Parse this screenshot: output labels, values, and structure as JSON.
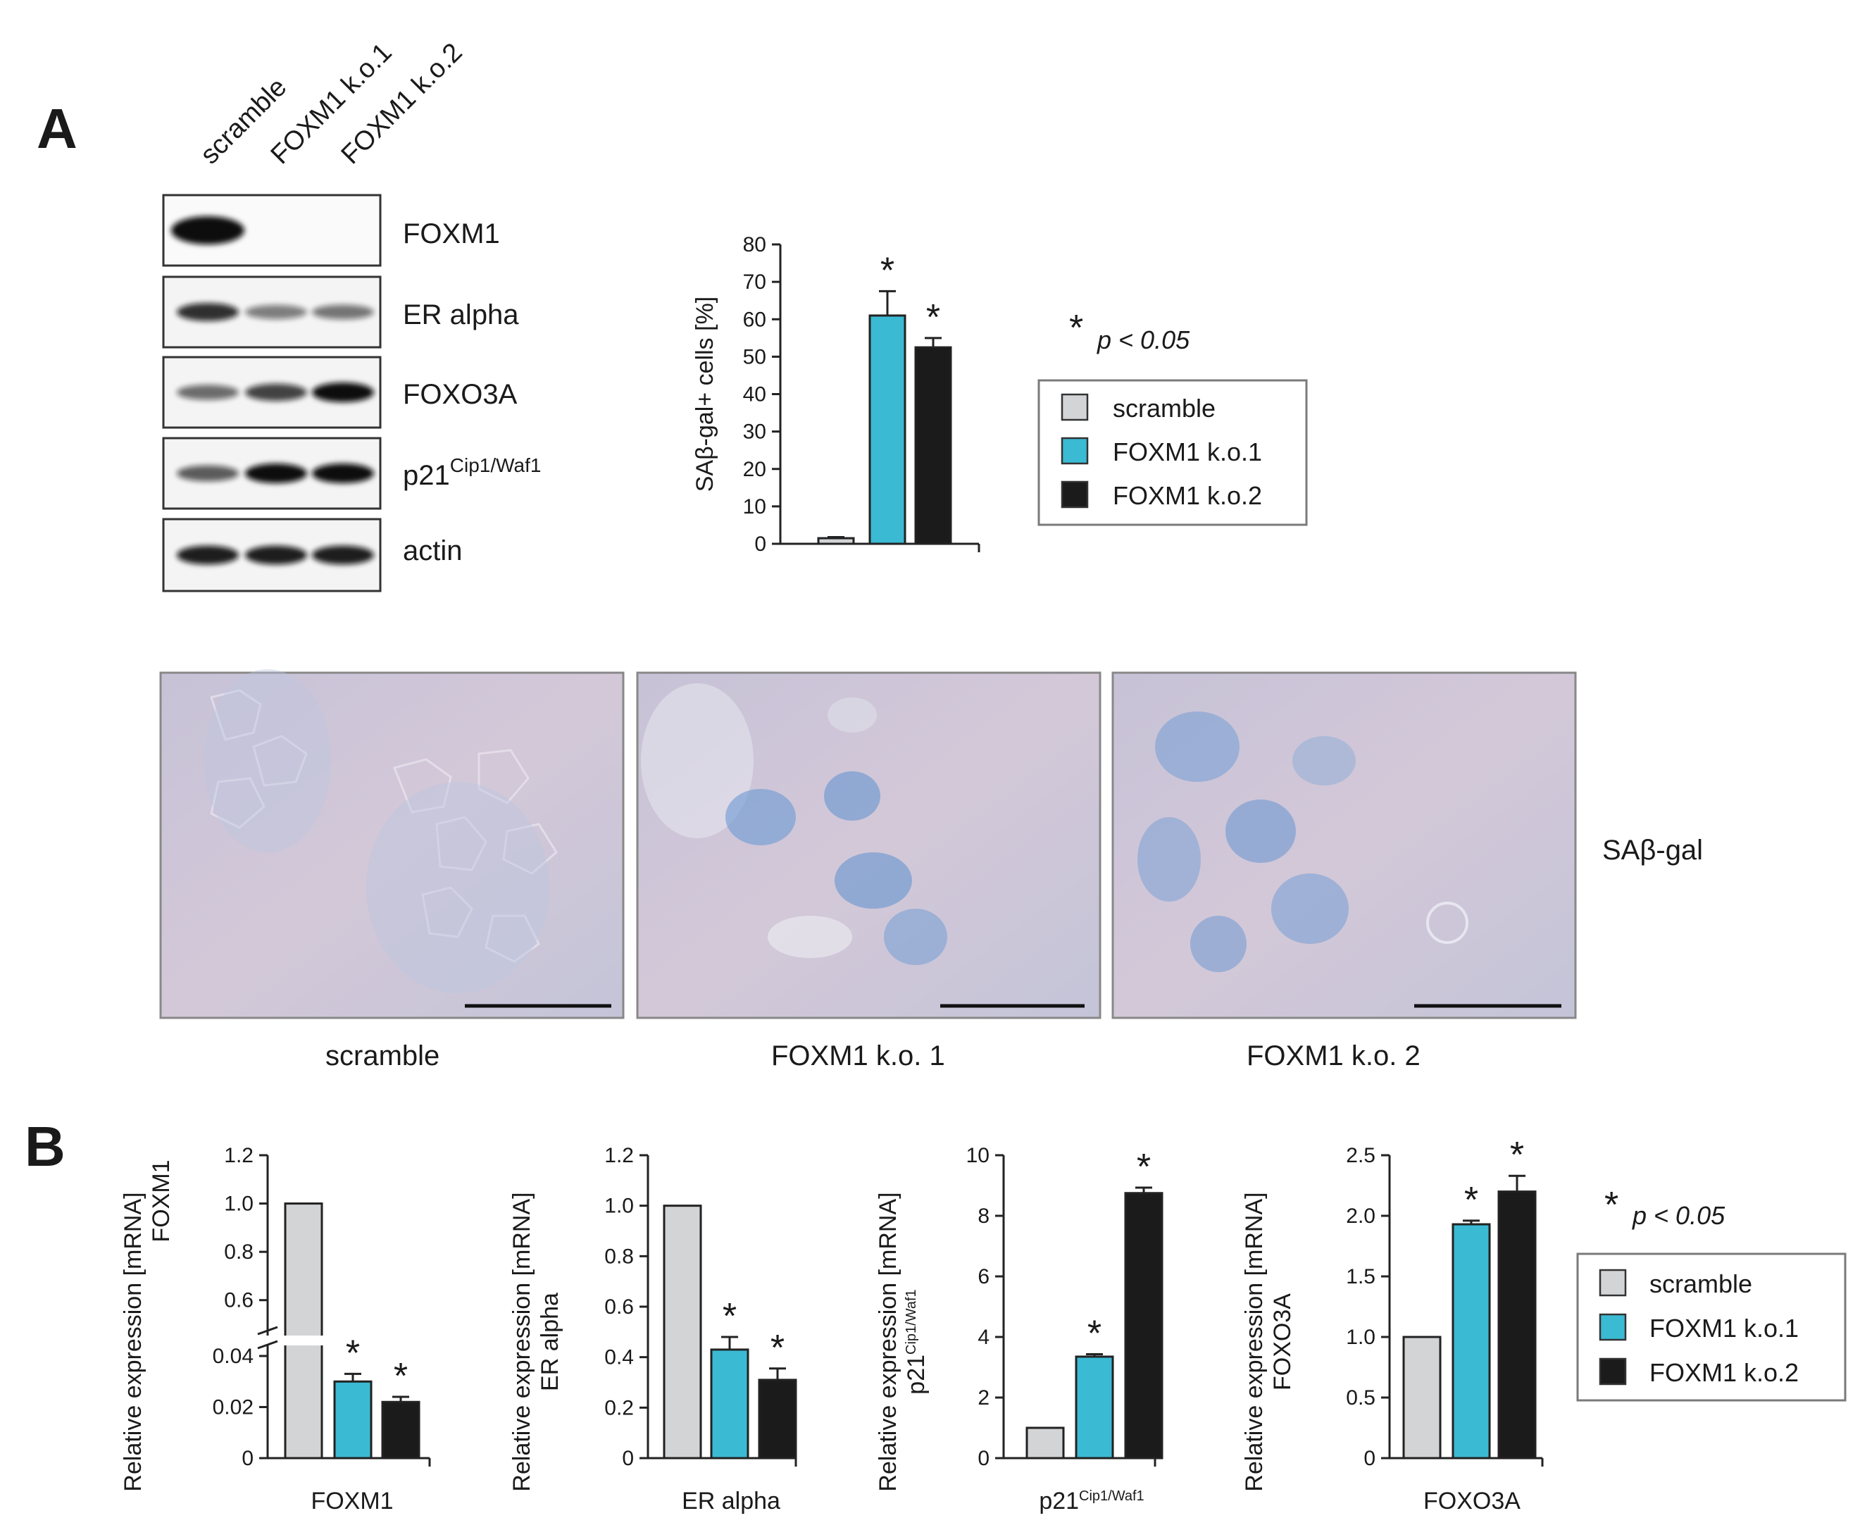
{
  "panel_a": {
    "letter": "A",
    "lanes": [
      "scramble",
      "FOXM1 k.o.1",
      "FOXM1 k.o.2"
    ],
    "blots": [
      {
        "label": "FOXM1",
        "intensity": [
          1.0,
          0.0,
          0.0
        ]
      },
      {
        "label": "ER alpha",
        "intensity": [
          0.8,
          0.35,
          0.4
        ]
      },
      {
        "label": "FOXO3A",
        "intensity": [
          0.45,
          0.7,
          1.0
        ]
      },
      {
        "label": "p21",
        "label_sup": "Cip1/Waf1",
        "intensity": [
          0.55,
          1.0,
          1.0
        ]
      },
      {
        "label": "actin",
        "intensity": [
          0.9,
          0.9,
          0.9
        ]
      }
    ],
    "sig_note": {
      "star": "*",
      "text": "p < 0.05"
    },
    "micrograph_captions": [
      "scramble",
      "FOXM1 k.o. 1",
      "FOXM1 k.o. 2"
    ],
    "micrograph_side_label": "SAβ-gal"
  },
  "panel_b": {
    "letter": "B",
    "sig_note": {
      "star": "*",
      "text": "p < 0.05"
    }
  },
  "legend": {
    "items": [
      {
        "label": "scramble",
        "color": "#d3d4d6"
      },
      {
        "label": "FOXM1 k.o.1",
        "color": "#3bbad3"
      },
      {
        "label": "FOXM1 k.o.2",
        "color": "#1b1b1b"
      }
    ]
  },
  "chart_data": [
    {
      "type": "bar",
      "panel": "A",
      "categories": [
        "scramble",
        "FOXM1 k.o.1",
        "FOXM1 k.o.2"
      ],
      "values": [
        1.5,
        61,
        52.5
      ],
      "errors": [
        0.3,
        6.5,
        2.5
      ],
      "significant": [
        false,
        true,
        true
      ],
      "ylabel": "SAβ-gal+ cells [%]",
      "xlabel": "",
      "ylim": [
        0,
        80
      ],
      "yticks": [
        0,
        10,
        20,
        30,
        40,
        50,
        60,
        70,
        80
      ]
    },
    {
      "type": "bar",
      "panel": "B",
      "categories": [
        "scramble",
        "FOXM1 k.o.1",
        "FOXM1 k.o.2"
      ],
      "values": [
        1.0,
        0.03,
        0.022
      ],
      "errors": [
        0,
        0.003,
        0.002
      ],
      "significant": [
        false,
        true,
        true
      ],
      "ylabel": "Relative expression [mRNA]",
      "ylabel2": "FOXM1",
      "xlabel": "FOXM1",
      "broken_axis": true,
      "yticks_lower": [
        "0",
        "0.02",
        "0.04"
      ],
      "yticks_upper": [
        "0.6",
        "0.8",
        "1.0",
        "1.2"
      ]
    },
    {
      "type": "bar",
      "panel": "B",
      "categories": [
        "scramble",
        "FOXM1 k.o.1",
        "FOXM1 k.o.2"
      ],
      "values": [
        1.0,
        0.43,
        0.31
      ],
      "errors": [
        0,
        0.05,
        0.045
      ],
      "significant": [
        false,
        true,
        true
      ],
      "ylabel": "Relative expression [mRNA]",
      "ylabel2": "ER alpha",
      "xlabel": "ER alpha",
      "ylim": [
        0,
        1.2
      ],
      "yticks": [
        "0",
        "0.2",
        "0.4",
        "0.6",
        "0.8",
        "1.0",
        "1.2"
      ]
    },
    {
      "type": "bar",
      "panel": "B",
      "categories": [
        "scramble",
        "FOXM1 k.o.1",
        "FOXM1 k.o.2"
      ],
      "values": [
        1.0,
        3.35,
        8.75
      ],
      "errors": [
        0,
        0.08,
        0.18
      ],
      "significant": [
        false,
        true,
        true
      ],
      "ylabel": "Relative expression [mRNA]",
      "ylabel2": "p21",
      "ylabel2_sup": "Cip1/Waf1",
      "xlabel": "p21",
      "xlabel_sup": "Cip1/Waf1",
      "ylim": [
        0,
        10
      ],
      "yticks": [
        "0",
        "2",
        "4",
        "6",
        "8",
        "10"
      ]
    },
    {
      "type": "bar",
      "panel": "B",
      "categories": [
        "scramble",
        "FOXM1 k.o.1",
        "FOXM1 k.o.2"
      ],
      "values": [
        1.0,
        1.93,
        2.2
      ],
      "errors": [
        0,
        0.03,
        0.13
      ],
      "significant": [
        false,
        true,
        true
      ],
      "ylabel": "Relative expression [mRNA]",
      "ylabel2": "FOXO3A",
      "xlabel": "FOXO3A",
      "ylim": [
        0,
        2.5
      ],
      "yticks": [
        "0",
        "0.5",
        "1.0",
        "1.5",
        "2.0",
        "2.5"
      ]
    }
  ]
}
